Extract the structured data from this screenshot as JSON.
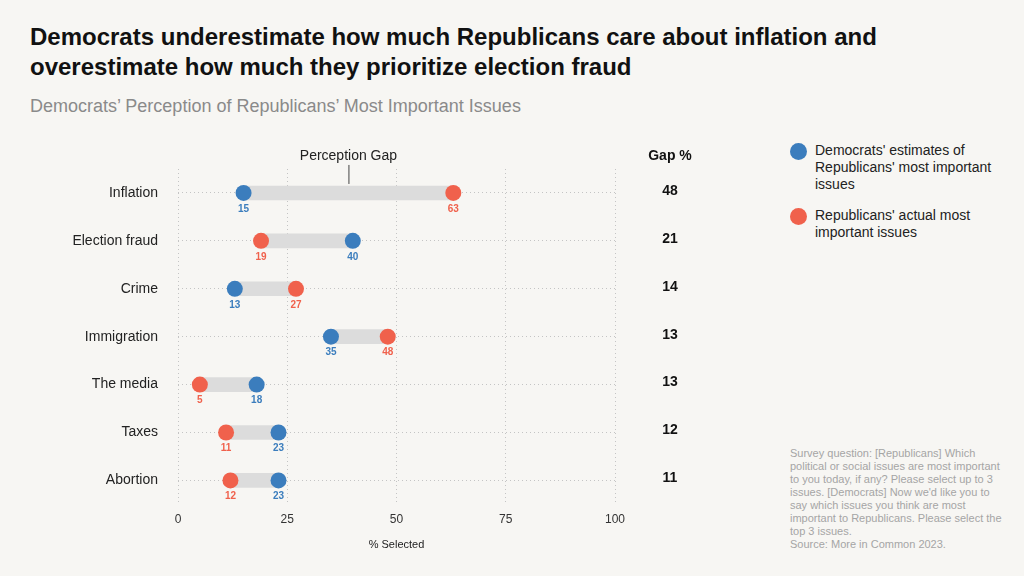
{
  "chart_data": {
    "type": "dumbbell",
    "title": "Democrats underestimate how much Republicans care about inflation and overestimate how much they prioritize election fraud",
    "subtitle": "Democrats’ Perception of Republicans’ Most Important Issues",
    "categories": [
      "Inflation",
      "Election fraud",
      "Crime",
      "Immigration",
      "The media",
      "Taxes",
      "Abortion"
    ],
    "series": [
      {
        "name": "Democrats' estimates of Republicans' most important issues",
        "color": "#3b7dbd",
        "values": [
          15,
          40,
          13,
          35,
          18,
          23,
          23
        ]
      },
      {
        "name": "Republicans' actual most important issues",
        "color": "#f0614c",
        "values": [
          63,
          19,
          27,
          48,
          5,
          11,
          12
        ]
      }
    ],
    "annotation": "Perception Gap",
    "gap_label": "Gap %",
    "gap_values": [
      48,
      21,
      14,
      13,
      13,
      12,
      11
    ],
    "xlabel": "% Selected",
    "xlim": [
      0,
      100
    ],
    "xticks": [
      0,
      25,
      50,
      75,
      100
    ],
    "grid": true,
    "orientation": "horizontal",
    "data_labels": true,
    "legend": "right",
    "note": "Survey question: [Republicans] Which political or social issues are most important to you today, if any? Please select up to 3 issues. [Democrats] Now we'd like you to say which issues you think are most important to Republicans. Please select the top 3 issues.",
    "source": "Source: More in Common 2023."
  }
}
